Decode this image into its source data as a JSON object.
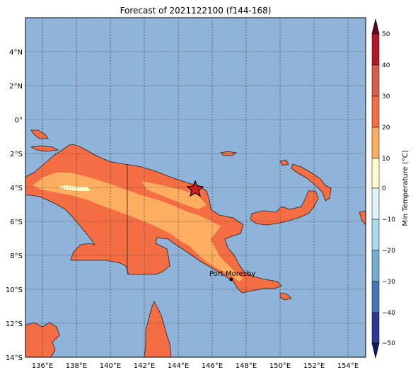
{
  "title": "Forecast of 2021122100 (f144-168)",
  "map": {
    "lat_ticks": [
      "4°N",
      "2°N",
      "0°",
      "2°S",
      "4°S",
      "6°S",
      "8°S",
      "10°S",
      "12°S",
      "14°S"
    ],
    "lon_ticks": [
      "136°E",
      "138°E",
      "140°E",
      "142°E",
      "144°E",
      "146°E",
      "148°E",
      "150°E",
      "152°E",
      "154°E"
    ],
    "ocean_color": "#8fb3d9",
    "city_label": "Port Moresby",
    "marker": "star-icon"
  },
  "colorbar": {
    "label": "Min Temperature (°C)",
    "ticks": [
      "50",
      "40",
      "30",
      "20",
      "10",
      "0",
      "−10",
      "−20",
      "−30",
      "−40",
      "−50"
    ],
    "colors": [
      "#67001f",
      "#b2182b",
      "#d6604d",
      "#f4a582",
      "#fddbc7",
      "#ffffcc",
      "#e0f3f8",
      "#abd9e9",
      "#74add1",
      "#4575b4",
      "#313695"
    ]
  }
}
